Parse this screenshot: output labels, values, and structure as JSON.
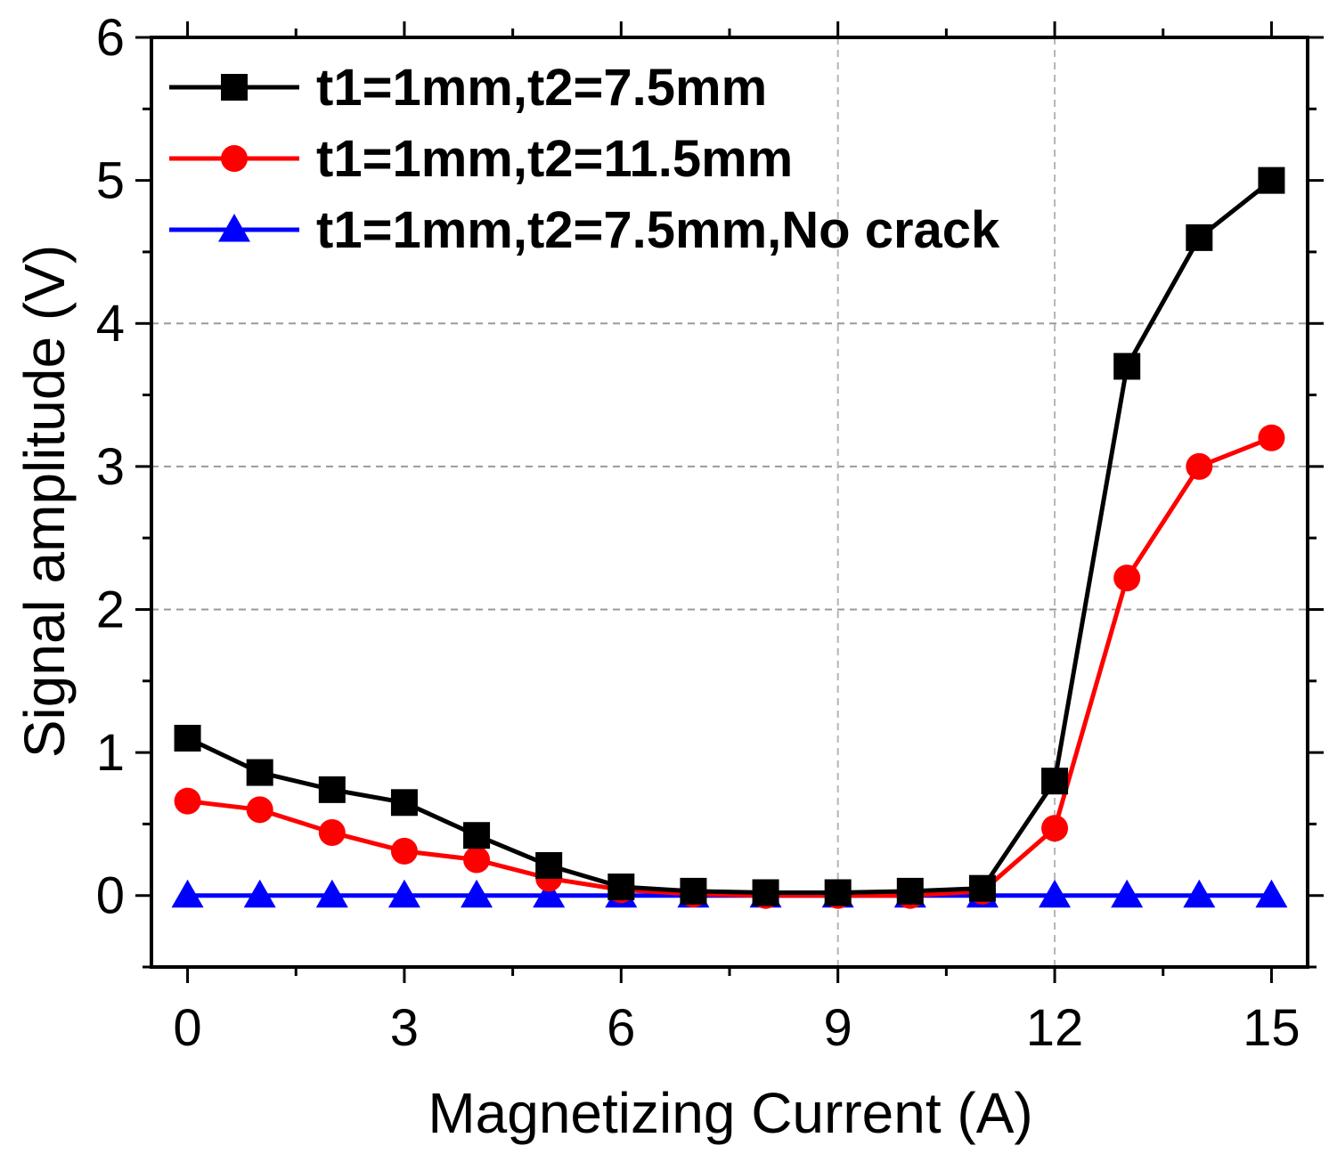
{
  "chart_data": {
    "type": "line",
    "title": "",
    "xlabel": "Magnetizing Current (A)",
    "ylabel": "Signal amplitude (V)",
    "xlim": [
      -0.5,
      15.5
    ],
    "ylim": [
      -0.5,
      6
    ],
    "xticks": [
      0,
      3,
      6,
      9,
      12,
      15
    ],
    "xtick_labels": [
      "0",
      "3",
      "6",
      "9",
      "12",
      "15"
    ],
    "yticks": [
      0,
      1,
      2,
      3,
      4,
      5,
      6
    ],
    "ytick_labels": [
      "0",
      "1",
      "2",
      "3",
      "4",
      "5",
      "6"
    ],
    "grid_y": [
      2,
      3,
      4
    ],
    "grid_x": [
      9,
      12
    ],
    "legend_position": "top-left",
    "x": [
      0,
      1,
      2,
      3,
      4,
      5,
      6,
      7,
      8,
      9,
      10,
      11,
      12,
      13,
      14,
      15
    ],
    "series": [
      {
        "name": "t1=1mm,t2=7.5mm",
        "color": "#000000",
        "marker": "square",
        "values": [
          1.1,
          0.86,
          0.74,
          0.65,
          0.42,
          0.21,
          0.06,
          0.03,
          0.02,
          0.02,
          0.03,
          0.05,
          0.8,
          3.7,
          4.6,
          5.0
        ]
      },
      {
        "name": "t1=1mm,t2=11.5mm",
        "color": "#ff0000",
        "marker": "circle",
        "values": [
          0.66,
          0.6,
          0.44,
          0.31,
          0.25,
          0.12,
          0.04,
          0.01,
          0.0,
          0.0,
          0.0,
          0.03,
          0.47,
          2.22,
          3.0,
          3.2
        ]
      },
      {
        "name": "t1=1mm,t2=7.5mm,No crack",
        "color": "#0000ff",
        "marker": "triangle",
        "values": [
          0,
          0,
          0,
          0,
          0,
          0,
          0,
          0,
          0,
          0,
          0,
          0,
          0,
          0,
          0,
          0
        ]
      }
    ]
  }
}
